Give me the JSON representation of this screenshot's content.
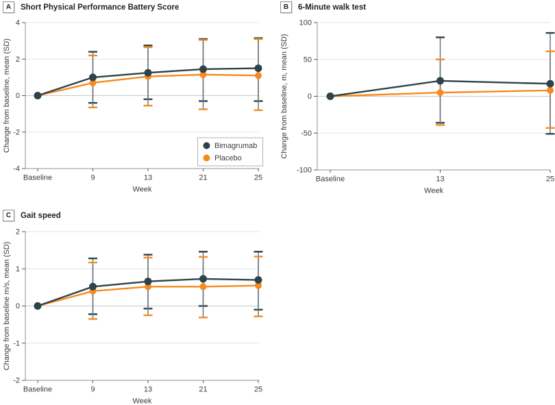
{
  "figure_name": "Change from baseline outcomes, three-panel trial figure",
  "colors": {
    "bimagrumab": "#2E4249",
    "placebo": "#F78A1E",
    "error_stem": "#6E777B",
    "grid_line": "#E3E3E3",
    "zero_line": "#C6C6C6",
    "axis_line": "#8F8F8F",
    "tick_mark": "#555555",
    "text": "#3B3B3B",
    "title_text": "#222222",
    "legend_border": "#B3B3B3",
    "background": "#FFFFFF"
  },
  "legend": {
    "items": [
      {
        "label": "Bimagrumab",
        "color": "#2E4249"
      },
      {
        "label": "Placebo",
        "color": "#F78A1E"
      }
    ],
    "position": "inside-bottom-right-of-panel-A"
  },
  "chart_data": [
    {
      "type": "line",
      "panel_label": "A",
      "title": "Short Physical Performance Battery Score",
      "xlabel": "Week",
      "ylabel": "Change from baseline, mean (SD)",
      "ylim": [
        -4,
        4
      ],
      "yticks": [
        4,
        2,
        0,
        -2,
        -4
      ],
      "categories": [
        "Baseline",
        "9",
        "13",
        "21",
        "25"
      ],
      "grid": true,
      "legend": true,
      "series": [
        {
          "name": "Bimagrumab",
          "color": "#2E4249",
          "values": [
            0,
            1.0,
            1.25,
            1.45,
            1.5
          ],
          "err_low": [
            null,
            -0.4,
            -0.2,
            -0.3,
            -0.3
          ],
          "err_high": [
            null,
            2.4,
            2.75,
            3.1,
            3.15
          ]
        },
        {
          "name": "Placebo",
          "color": "#F78A1E",
          "values": [
            0,
            0.7,
            1.05,
            1.15,
            1.1
          ],
          "err_low": [
            null,
            -0.65,
            -0.55,
            -0.75,
            -0.8
          ],
          "err_high": [
            null,
            2.2,
            2.65,
            3.05,
            3.1
          ]
        }
      ]
    },
    {
      "type": "line",
      "panel_label": "B",
      "title": "6-Minute walk test",
      "xlabel": "Week",
      "ylabel": "Change from baseline, m, mean (SD)",
      "ylim": [
        -100,
        100
      ],
      "yticks": [
        100,
        50,
        0,
        -50,
        -100
      ],
      "categories": [
        "Baseline",
        "13",
        "25"
      ],
      "grid": true,
      "legend": false,
      "series": [
        {
          "name": "Bimagrumab",
          "color": "#2E4249",
          "values": [
            0,
            21,
            17
          ],
          "err_low": [
            null,
            -36,
            -51
          ],
          "err_high": [
            null,
            80,
            86
          ]
        },
        {
          "name": "Placebo",
          "color": "#F78A1E",
          "values": [
            0,
            5,
            8
          ],
          "err_low": [
            null,
            -39,
            -43
          ],
          "err_high": [
            null,
            50,
            61
          ]
        }
      ]
    },
    {
      "type": "line",
      "panel_label": "C",
      "title": "Gait speed",
      "xlabel": "Week",
      "ylabel": "Change from baseline m/s, mean (SD)",
      "ylim": [
        -2,
        2
      ],
      "yticks": [
        2,
        1,
        0,
        -1,
        -2
      ],
      "categories": [
        "Baseline",
        "9",
        "13",
        "21",
        "25"
      ],
      "grid": true,
      "legend": false,
      "series": [
        {
          "name": "Bimagrumab",
          "color": "#2E4249",
          "values": [
            0,
            0.52,
            0.66,
            0.73,
            0.7
          ],
          "err_low": [
            null,
            -0.22,
            -0.07,
            0,
            -0.1
          ],
          "err_high": [
            null,
            1.28,
            1.38,
            1.46,
            1.46
          ]
        },
        {
          "name": "Placebo",
          "color": "#F78A1E",
          "values": [
            0,
            0.4,
            0.52,
            0.52,
            0.55
          ],
          "err_low": [
            null,
            -0.35,
            -0.25,
            -0.31,
            -0.28
          ],
          "err_high": [
            null,
            1.17,
            1.3,
            1.32,
            1.33
          ]
        }
      ]
    }
  ]
}
